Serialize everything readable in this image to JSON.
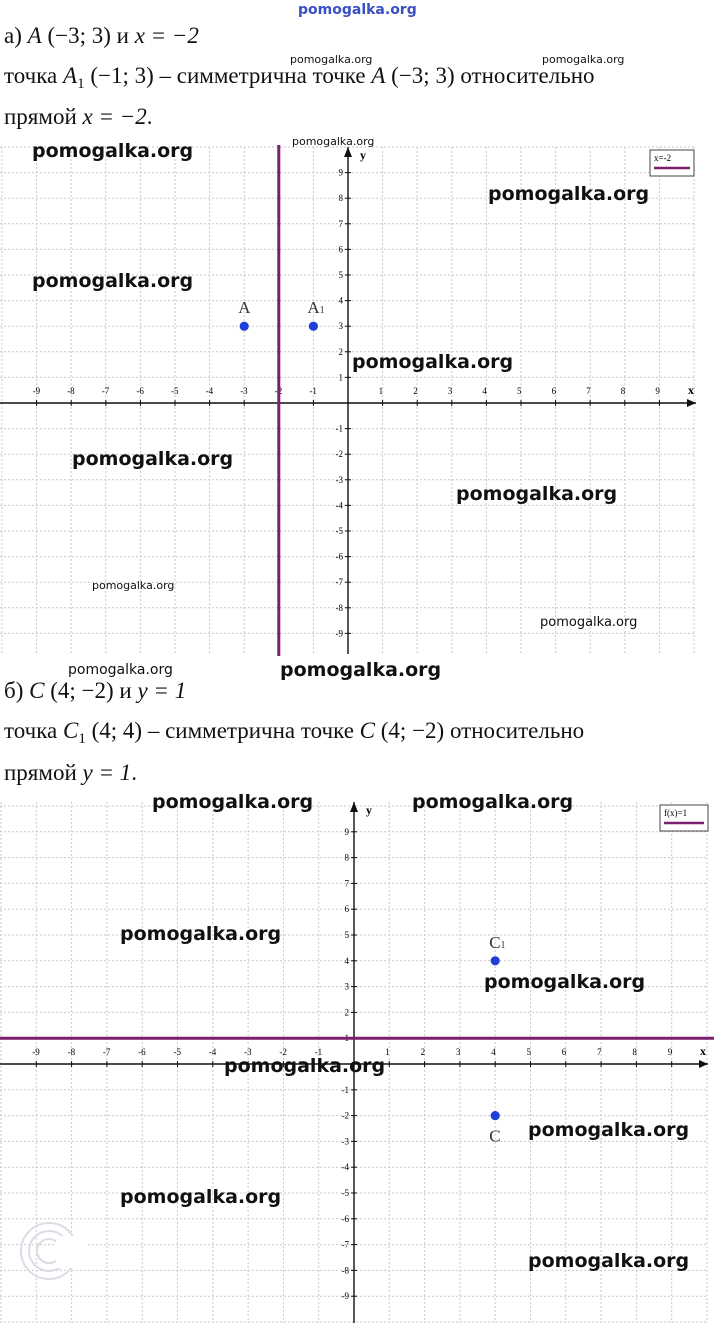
{
  "header_watermark": "pomogalka.org",
  "part_a": {
    "line1": {
      "label": "а)",
      "point": "A",
      "coords": "(−3; 3)",
      "conj": "и",
      "equation": "x = −2"
    },
    "line2": {
      "word": "точка",
      "point": "A",
      "point_sub": "1",
      "coords": "(−1; 3)",
      "text": "– симметрична точке",
      "target_point": "A",
      "target_coords": "(−3; 3)",
      "tail": "относительно"
    },
    "line3": {
      "word": "прямой",
      "equation": "x = −2",
      "end": "."
    }
  },
  "part_b": {
    "line1": {
      "label": "б)",
      "point": "C",
      "coords": "(4; −2)",
      "conj": "и",
      "equation": "y = 1"
    },
    "line2": {
      "word": "точка",
      "point": "C",
      "point_sub": "1",
      "coords": "(4; 4)",
      "text": "– симметрична точке",
      "target_point": "C",
      "target_coords": "(4; −2)",
      "tail": "относительно"
    },
    "line3": {
      "word": "прямой",
      "equation": "y = 1",
      "end": "."
    }
  },
  "chart_data": [
    {
      "type": "scatter",
      "xlabel": "x",
      "ylabel": "y",
      "xlim": [
        -10,
        10
      ],
      "ylim": [
        -10,
        10
      ],
      "x_ticks": [
        -9,
        -8,
        -7,
        -6,
        -5,
        -4,
        -3,
        -2,
        -1,
        1,
        2,
        3,
        4,
        5,
        6,
        7,
        8,
        9
      ],
      "y_ticks": [
        9,
        8,
        7,
        6,
        5,
        4,
        3,
        2,
        1,
        -1,
        -2,
        -3,
        -4,
        -5,
        -6,
        -7,
        -8,
        -9
      ],
      "grid": true,
      "points": [
        {
          "label": "A",
          "x": -3,
          "y": 3
        },
        {
          "label": "A1",
          "x": -1,
          "y": 3
        }
      ],
      "line": {
        "orientation": "vertical",
        "value": -2,
        "color": "#7b1f6e"
      },
      "legend": {
        "text": "x=-2",
        "placement": "top-right"
      },
      "point_color": "#1f3fd6"
    },
    {
      "type": "scatter",
      "xlabel": "x",
      "ylabel": "y",
      "xlim": [
        -10,
        10
      ],
      "ylim": [
        -10,
        10
      ],
      "x_ticks": [
        -9,
        -8,
        -7,
        -6,
        -5,
        -4,
        -3,
        -2,
        -1,
        1,
        2,
        3,
        4,
        5,
        6,
        7,
        8,
        9
      ],
      "y_ticks": [
        9,
        8,
        7,
        6,
        5,
        4,
        3,
        2,
        1,
        -1,
        -2,
        -3,
        -4,
        -5,
        -6,
        -7,
        -8,
        -9
      ],
      "grid": true,
      "points": [
        {
          "label": "C1",
          "x": 4,
          "y": 4
        },
        {
          "label": "C",
          "x": 4,
          "y": -2
        }
      ],
      "line": {
        "orientation": "horizontal",
        "value": 1,
        "color": "#7b1f6e"
      },
      "legend": {
        "text": "f(x)=1",
        "placement": "top-right"
      },
      "point_color": "#1f3fd6"
    }
  ],
  "watermarks": {
    "small": "pomogalka.org",
    "big": "pomogalka.org"
  }
}
